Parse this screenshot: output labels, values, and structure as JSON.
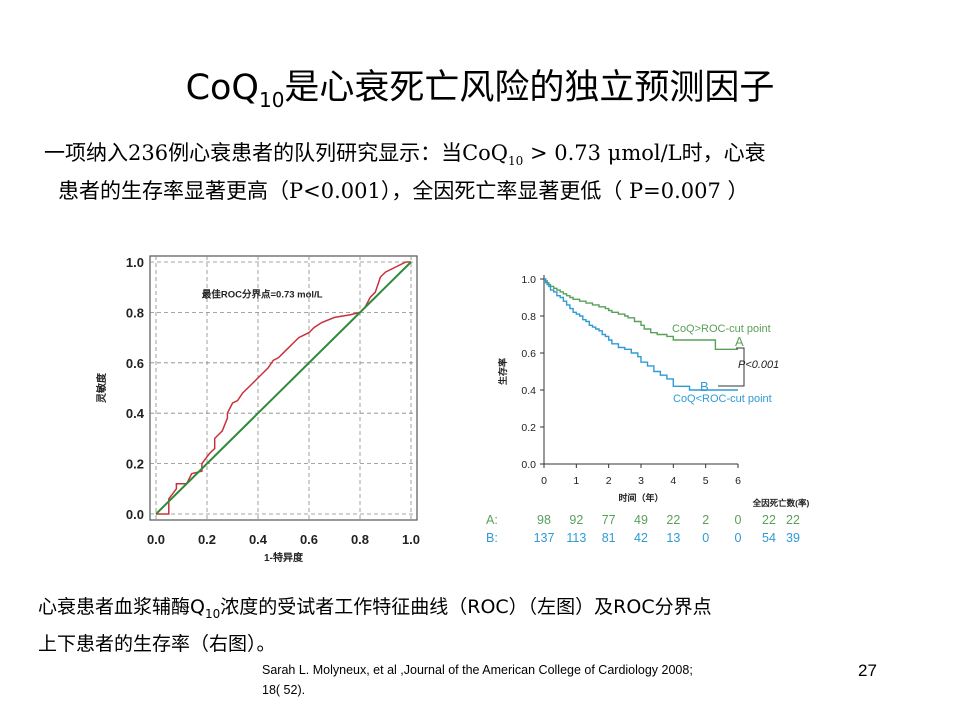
{
  "slide": {
    "title_main": "CoQ",
    "title_sub": "10",
    "title_rest": "是心衰死亡风险的独立预测因子",
    "intro_line1_a": "一项纳入236例心衰患者的队列研究显示：当CoQ",
    "intro_line1_sub": "10",
    "intro_line1_b": " > 0.73 μmol/L时，心衰",
    "intro_line2": "患者的生存率显著更高（P<0.001），全因死亡率显著更低（ P=0.007 ）",
    "caption_line1_a": "心衰患者血浆辅酶Q",
    "caption_line1_sub": "10",
    "caption_line1_b": "浓度的受试者工作特征曲线（ROC）（左图）及ROC分界点",
    "caption_line2": "上下患者的生存率（右图）。",
    "reference_line1": "Sarah L. Molyneux, et al ,Journal of the American College of Cardiology   2008;",
    "reference_line2": "18( 52).",
    "page_number": "27"
  },
  "chart_data": [
    {
      "type": "line",
      "name": "roc",
      "annotation": "最佳ROC分界点=0.73 mol/L",
      "xlabel": "1-特异度",
      "ylabel": "灵敏度",
      "xlim": [
        0,
        1
      ],
      "ylim": [
        0,
        1
      ],
      "x_ticks": [
        "0.0",
        "0.2",
        "0.4",
        "0.6",
        "0.8",
        "1.0"
      ],
      "y_ticks": [
        "0.0",
        "0.2",
        "0.4",
        "0.6",
        "0.8",
        "1.0"
      ],
      "grid": true,
      "series": [
        {
          "color": "#c8323c",
          "x": [
            0,
            0.05,
            0.05,
            0.08,
            0.08,
            0.12,
            0.14,
            0.18,
            0.18,
            0.21,
            0.23,
            0.23,
            0.25,
            0.26,
            0.28,
            0.28,
            0.3,
            0.32,
            0.34,
            0.36,
            0.38,
            0.4,
            0.42,
            0.44,
            0.46,
            0.48,
            0.5,
            0.52,
            0.54,
            0.56,
            0.6,
            0.62,
            0.65,
            0.7,
            0.76,
            0.8,
            0.82,
            0.84,
            0.86,
            0.88,
            0.9,
            0.94,
            0.98,
            1.0
          ],
          "y": [
            0,
            0,
            0.06,
            0.1,
            0.12,
            0.12,
            0.16,
            0.17,
            0.2,
            0.24,
            0.26,
            0.3,
            0.32,
            0.33,
            0.38,
            0.4,
            0.44,
            0.45,
            0.48,
            0.5,
            0.52,
            0.54,
            0.56,
            0.58,
            0.61,
            0.62,
            0.64,
            0.66,
            0.68,
            0.7,
            0.72,
            0.74,
            0.76,
            0.78,
            0.79,
            0.8,
            0.82,
            0.86,
            0.88,
            0.94,
            0.96,
            0.98,
            1.0,
            1.0
          ]
        },
        {
          "color": "#2f8a3a",
          "x": [
            0,
            1
          ],
          "y": [
            0,
            1
          ]
        }
      ]
    },
    {
      "type": "line",
      "name": "kaplan-meier",
      "xlabel": "时间（年）",
      "ylabel": "生存率",
      "xlim": [
        0,
        6
      ],
      "ylim": [
        0,
        1
      ],
      "x_ticks": [
        "0",
        "1",
        "2",
        "3",
        "4",
        "5",
        "6"
      ],
      "y_ticks": [
        "0.0",
        "0.2",
        "0.4",
        "0.6",
        "0.8",
        "1.0"
      ],
      "p_value": "P<0.001",
      "series": [
        {
          "name": "CoQ>ROC-cut point",
          "label": "A",
          "color": "#5aa05a",
          "x": [
            0,
            0.05,
            0.1,
            0.15,
            0.2,
            0.3,
            0.4,
            0.5,
            0.6,
            0.7,
            0.8,
            0.9,
            1.0,
            1.1,
            1.3,
            1.5,
            1.6,
            1.7,
            1.9,
            2.0,
            2.1,
            2.3,
            2.5,
            2.6,
            2.8,
            3.0,
            3.1,
            3.3,
            3.5,
            3.8,
            4.0,
            4.5,
            5.0,
            5.3,
            5.3,
            6.0
          ],
          "y": [
            1.0,
            0.99,
            0.98,
            0.97,
            0.96,
            0.95,
            0.94,
            0.93,
            0.92,
            0.91,
            0.9,
            0.89,
            0.89,
            0.88,
            0.87,
            0.86,
            0.86,
            0.85,
            0.84,
            0.83,
            0.82,
            0.81,
            0.8,
            0.79,
            0.77,
            0.75,
            0.73,
            0.71,
            0.7,
            0.69,
            0.67,
            0.67,
            0.67,
            0.67,
            0.62,
            0.62
          ]
        },
        {
          "name": "CoQ<ROC-cut point",
          "label": "B",
          "color": "#2f9bd6",
          "x": [
            0,
            0.05,
            0.1,
            0.15,
            0.2,
            0.3,
            0.4,
            0.5,
            0.6,
            0.7,
            0.8,
            0.9,
            1.0,
            1.1,
            1.2,
            1.3,
            1.4,
            1.5,
            1.6,
            1.7,
            1.8,
            1.9,
            2.0,
            2.1,
            2.3,
            2.5,
            2.7,
            2.9,
            3.0,
            3.2,
            3.4,
            3.6,
            3.8,
            4.0,
            4.0,
            4.5,
            4.5,
            6.0
          ],
          "y": [
            1.0,
            0.98,
            0.97,
            0.96,
            0.94,
            0.93,
            0.91,
            0.9,
            0.88,
            0.86,
            0.84,
            0.82,
            0.81,
            0.8,
            0.78,
            0.77,
            0.75,
            0.74,
            0.73,
            0.72,
            0.7,
            0.69,
            0.67,
            0.65,
            0.63,
            0.62,
            0.6,
            0.58,
            0.55,
            0.53,
            0.5,
            0.48,
            0.46,
            0.45,
            0.42,
            0.42,
            0.4,
            0.4
          ]
        }
      ],
      "risk_table": {
        "header": "全因死亡数(率)",
        "rows": [
          {
            "label": "A:",
            "color": "#5aa05a",
            "values": [
              "98",
              "92",
              "77",
              "49",
              "22",
              "2",
              "0"
            ],
            "deaths": [
              "22",
              "22"
            ]
          },
          {
            "label": "B:",
            "color": "#2f9bd6",
            "values": [
              "137",
              "113",
              "81",
              "42",
              "13",
              "0",
              "0"
            ],
            "deaths": [
              "54",
              "39"
            ]
          }
        ]
      }
    }
  ]
}
